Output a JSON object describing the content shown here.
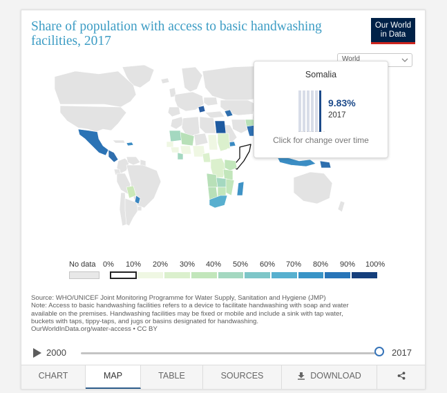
{
  "chart": {
    "title": "Share of population with access to basic handwashing facilities, 2017",
    "logo": {
      "line1": "Our World",
      "line2": "in Data"
    },
    "region_select": "World",
    "colors": {
      "title": "#3c9cc4",
      "logo_bg": "#002147",
      "logo_accent": "#ce261e"
    }
  },
  "tooltip": {
    "country": "Somalia",
    "value": "9.83%",
    "year": "2017",
    "hint": "Click for change over time"
  },
  "legend": {
    "no_data_label": "No data",
    "bins": [
      {
        "label": "0%",
        "color": "#ffffff"
      },
      {
        "label": "10%",
        "color": "#eff7e3"
      },
      {
        "label": "20%",
        "color": "#dbf0cd"
      },
      {
        "label": "30%",
        "color": "#c2e6bb"
      },
      {
        "label": "40%",
        "color": "#a4d8c0"
      },
      {
        "label": "50%",
        "color": "#7ec6c8"
      },
      {
        "label": "60%",
        "color": "#57b0cf"
      },
      {
        "label": "70%",
        "color": "#3994c7"
      },
      {
        "label": "80%",
        "color": "#2875b8"
      },
      {
        "label": "90%",
        "color": "#1d5aa0"
      },
      {
        "label": "100%",
        "color": "#153f7c"
      }
    ]
  },
  "notes": {
    "source": "Source: WHO/UNICEF Joint Monitoring Programme for Water Supply, Sanitation and Hygiene (JMP)",
    "note_line1": "Note: Access to basic handwashing facilities refers to a device to facilitate handwashing with soap and water",
    "note_line2": "available on the premises. Handwashing facilities may be fixed or mobile and include a sink with tap water,",
    "note_line3": "buckets with taps, tippy-taps, and jugs or basins designated for handwashing.",
    "url": "OurWorldInData.org/water-access • CC BY"
  },
  "timeline": {
    "start_year": "2000",
    "end_year": "2017",
    "position": 1.0
  },
  "tabs": {
    "chart": "CHART",
    "map": "MAP",
    "table": "TABLE",
    "sources": "SOURCES",
    "download": "DOWNLOAD"
  }
}
